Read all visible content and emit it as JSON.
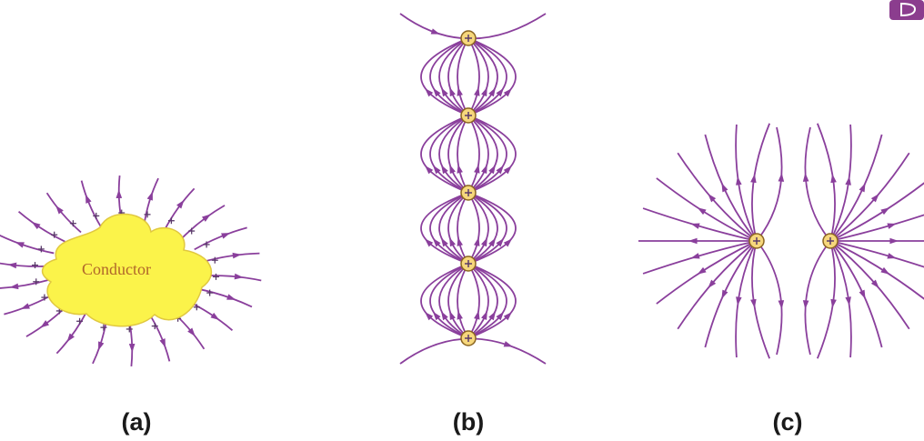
{
  "panels": [
    {
      "label": "(a)",
      "conductor_label": "Conductor"
    },
    {
      "label": "(b)"
    },
    {
      "label": "(c)"
    }
  ]
}
